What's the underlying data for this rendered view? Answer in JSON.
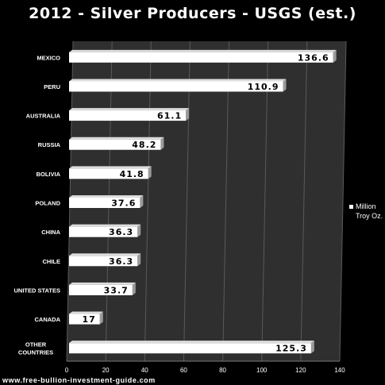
{
  "title": "2012 - Silver Producers - USGS (est.)",
  "footer": "www.free-bullion-investment-guide.com",
  "legend": {
    "label_line1": "Million",
    "label_line2": "Troy Oz."
  },
  "colors": {
    "plot_background": "#2f2f2f",
    "bar_face": "#ffffff",
    "bar_side": "#9a9a9a",
    "gridline": "#5a5a5a"
  },
  "chart_data": {
    "type": "bar",
    "orientation": "horizontal",
    "title": "2012 - Silver Producers - USGS (est.)",
    "xlabel": "",
    "ylabel": "",
    "xlim": [
      0,
      140
    ],
    "xticks": [
      0,
      20,
      40,
      60,
      80,
      100,
      120,
      140
    ],
    "grid": true,
    "legend_position": "right",
    "series": [
      {
        "name": "Million Troy Oz.",
        "values": [
          136.6,
          110.9,
          61.1,
          48.2,
          41.8,
          37.6,
          36.3,
          36.3,
          33.7,
          17,
          125.3
        ]
      }
    ],
    "categories": [
      "Mexico",
      "Peru",
      "Australia",
      "Russia",
      "Bolivia",
      "Poland",
      "China",
      "Chile",
      "United States",
      "Canada",
      "Other Countries"
    ],
    "data_labels": [
      "136.6",
      "110.9",
      "61.1",
      "48.2",
      "41.8",
      "37.6",
      "36.3",
      "36.3",
      "33.7",
      "17",
      "125.3"
    ]
  }
}
